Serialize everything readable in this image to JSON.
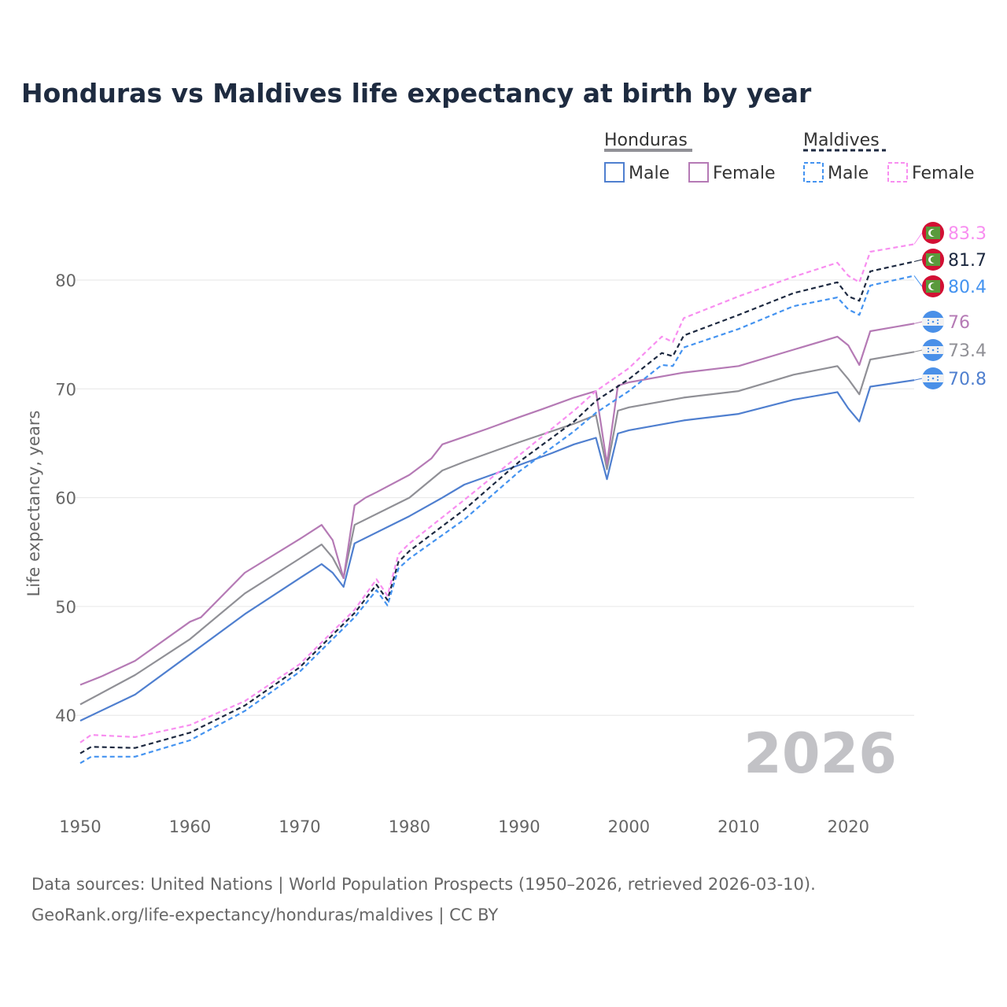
{
  "chart_data": {
    "type": "line",
    "title": "Honduras vs Maldives life expectancy at birth by year",
    "xlabel": "",
    "ylabel": "Life expectancy, years",
    "xlim": [
      1950,
      2026
    ],
    "ylim": [
      33,
      87
    ],
    "x_ticks": [
      1950,
      1960,
      1970,
      1980,
      1990,
      2000,
      2010,
      2020
    ],
    "y_ticks": [
      40,
      50,
      60,
      70,
      80
    ],
    "grid": true,
    "watermark_year": "2026",
    "legend": {
      "placement": "top-right",
      "groups": [
        {
          "name": "Honduras",
          "items": [
            "Male",
            "Female"
          ]
        },
        {
          "name": "Maldives",
          "items": [
            "Male",
            "Female"
          ]
        }
      ]
    },
    "series": [
      {
        "name": "Honduras",
        "sex": "Total",
        "color": "#909096",
        "dashed": false,
        "end_label": "73.4",
        "x": [
          1950,
          1955,
          1960,
          1965,
          1970,
          1972,
          1973,
          1974,
          1975,
          1980,
          1983,
          1985,
          1990,
          1995,
          1997,
          1998,
          1999,
          2000,
          2005,
          2010,
          2015,
          2019,
          2020,
          2021,
          2022,
          2026
        ],
        "values": [
          41.0,
          43.7,
          47.0,
          51.2,
          54.4,
          55.7,
          54.5,
          52.6,
          57.5,
          60.0,
          62.5,
          63.3,
          65.1,
          66.8,
          67.6,
          62.6,
          68.0,
          68.3,
          69.2,
          69.8,
          71.3,
          72.1,
          70.9,
          69.5,
          72.7,
          73.4
        ]
      },
      {
        "name": "Honduras",
        "sex": "Male",
        "color": "#4f7fcf",
        "dashed": false,
        "end_label": "70.8",
        "x": [
          1950,
          1955,
          1960,
          1965,
          1970,
          1972,
          1973,
          1974,
          1975,
          1980,
          1983,
          1985,
          1990,
          1993,
          1995,
          1997,
          1998,
          1999,
          2000,
          2005,
          2010,
          2015,
          2019,
          2020,
          2021,
          2022,
          2026
        ],
        "values": [
          39.5,
          41.9,
          45.6,
          49.3,
          52.6,
          53.9,
          53.1,
          51.8,
          55.8,
          58.3,
          60.0,
          61.2,
          63.0,
          64.1,
          64.9,
          65.5,
          61.7,
          65.9,
          66.2,
          67.1,
          67.7,
          69.0,
          69.7,
          68.2,
          67.0,
          70.2,
          70.8
        ]
      },
      {
        "name": "Honduras",
        "sex": "Female",
        "color": "#b57ab5",
        "dashed": false,
        "end_label": "76",
        "x": [
          1950,
          1952,
          1955,
          1960,
          1961,
          1965,
          1970,
          1972,
          1973,
          1974,
          1975,
          1976,
          1977,
          1980,
          1982,
          1983,
          1985,
          1987,
          1990,
          1992,
          1995,
          1997,
          1998,
          1999,
          2000,
          2005,
          2010,
          2015,
          2019,
          2020,
          2021,
          2022,
          2026
        ],
        "values": [
          42.8,
          43.6,
          45.0,
          48.6,
          49.0,
          53.1,
          56.2,
          57.5,
          56.1,
          52.6,
          59.3,
          60.0,
          60.5,
          62.1,
          63.6,
          64.9,
          65.6,
          66.3,
          67.4,
          68.1,
          69.2,
          69.8,
          63.1,
          70.3,
          70.6,
          71.5,
          72.1,
          73.6,
          74.8,
          74.0,
          72.2,
          75.3,
          76.0
        ]
      },
      {
        "name": "Maldives",
        "sex": "Total",
        "color": "#1d2940",
        "dashed": true,
        "end_label": "81.7",
        "x": [
          1950,
          1951,
          1955,
          1960,
          1965,
          1970,
          1975,
          1977,
          1978,
          1979,
          1980,
          1985,
          1990,
          1995,
          1997,
          2000,
          2003,
          2004,
          2005,
          2010,
          2015,
          2019,
          2020,
          2021,
          2022,
          2026
        ],
        "values": [
          36.5,
          37.1,
          37.0,
          38.4,
          40.9,
          44.4,
          49.4,
          52.0,
          50.6,
          54.1,
          55.1,
          58.9,
          63.3,
          67.0,
          68.9,
          70.9,
          73.3,
          73.0,
          74.9,
          76.8,
          78.8,
          79.8,
          78.5,
          78.1,
          80.8,
          81.7
        ]
      },
      {
        "name": "Maldives",
        "sex": "Male",
        "color": "#4493f0",
        "dashed": true,
        "end_label": "80.4",
        "x": [
          1950,
          1951,
          1955,
          1960,
          1965,
          1970,
          1975,
          1977,
          1978,
          1979,
          1980,
          1985,
          1990,
          1995,
          1997,
          2000,
          2003,
          2004,
          2005,
          2010,
          2015,
          2019,
          2020,
          2021,
          2022,
          2026
        ],
        "values": [
          35.6,
          36.2,
          36.2,
          37.7,
          40.4,
          44.0,
          49.0,
          51.5,
          50.1,
          53.5,
          54.4,
          58.0,
          62.4,
          66.1,
          67.8,
          69.8,
          72.2,
          72.1,
          73.8,
          75.5,
          77.6,
          78.4,
          77.3,
          76.8,
          79.5,
          80.4
        ]
      },
      {
        "name": "Maldives",
        "sex": "Female",
        "color": "#f88ef0",
        "dashed": true,
        "end_label": "83.3",
        "x": [
          1950,
          1951,
          1955,
          1960,
          1965,
          1970,
          1975,
          1977,
          1978,
          1979,
          1980,
          1985,
          1990,
          1995,
          1997,
          2000,
          2003,
          2004,
          2005,
          2010,
          2015,
          2019,
          2020,
          2021,
          2022,
          2026
        ],
        "values": [
          37.5,
          38.2,
          38.0,
          39.1,
          41.3,
          44.7,
          49.7,
          52.5,
          51.0,
          54.8,
          55.8,
          59.8,
          63.9,
          68.0,
          69.8,
          71.9,
          74.8,
          74.3,
          76.5,
          78.5,
          80.3,
          81.6,
          80.4,
          79.8,
          82.6,
          83.3
        ]
      }
    ]
  },
  "footer": {
    "line1": "Data sources: United Nations | World Population Prospects (1950–2026, retrieved 2026-03-10).",
    "line2": "GeoRank.org/life-expectancy/honduras/maldives | CC BY"
  }
}
